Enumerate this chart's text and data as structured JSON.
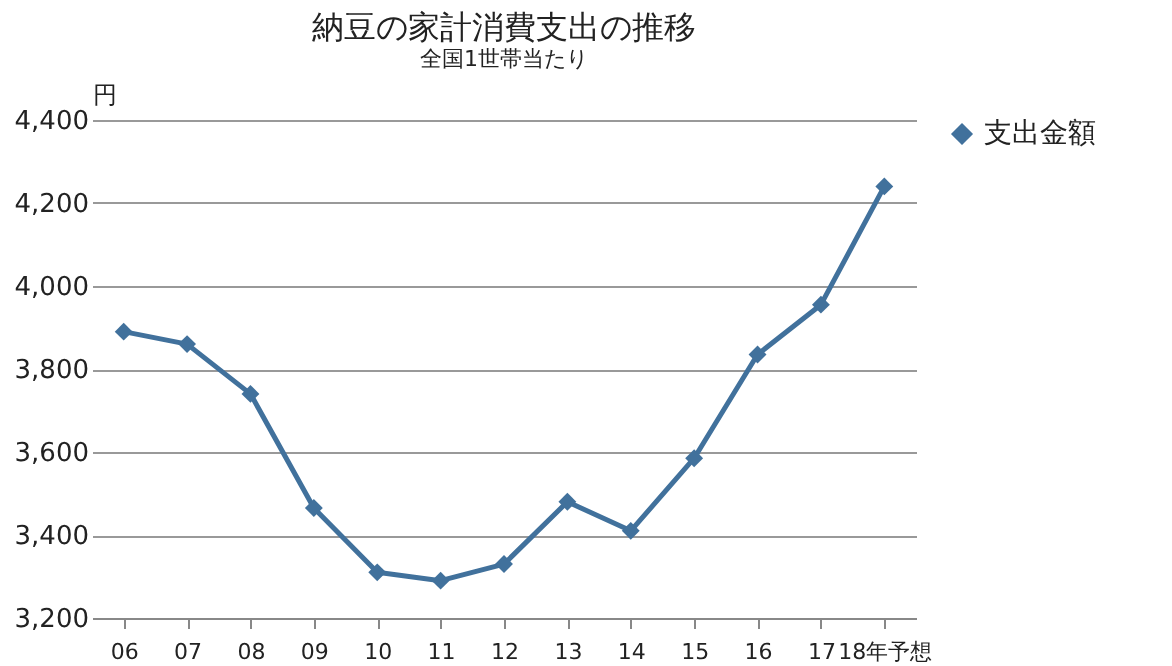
{
  "chart_data": {
    "type": "line",
    "title": "納豆の家計消費支出の推移",
    "subtitle": "全国1世帯当たり",
    "ylabel": "円",
    "categories": [
      "06",
      "07",
      "08",
      "09",
      "10",
      "11",
      "12",
      "13",
      "14",
      "15",
      "16",
      "17",
      "18年予想"
    ],
    "series": [
      {
        "name": "支出金額",
        "color": "#41719c",
        "values": [
          3890,
          3860,
          3740,
          3465,
          3310,
          3290,
          3330,
          3480,
          3410,
          3585,
          3835,
          3955,
          4240
        ]
      }
    ],
    "ylim": [
      3200,
      4400
    ],
    "yticks": [
      {
        "value": 3200,
        "label": "3,200"
      },
      {
        "value": 3400,
        "label": "3,400"
      },
      {
        "value": 3600,
        "label": "3,600"
      },
      {
        "value": 3800,
        "label": "3,800"
      },
      {
        "value": 4000,
        "label": "4,000"
      },
      {
        "value": 4200,
        "label": "4,200"
      },
      {
        "value": 4400,
        "label": "4,400"
      }
    ],
    "grid": "y",
    "legend": "right",
    "marker": "diamond",
    "line_style": "solid"
  }
}
